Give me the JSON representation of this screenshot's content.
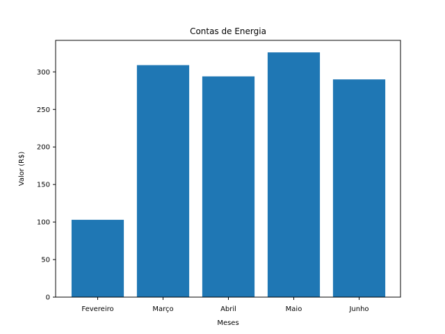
{
  "chart_data": {
    "type": "bar",
    "title": "Contas de Energia",
    "xlabel": "Meses",
    "ylabel": "Valor (R$)",
    "categories": [
      "Fevereiro",
      "Março",
      "Abril",
      "Maio",
      "Junho"
    ],
    "values": [
      103,
      309,
      294,
      326,
      290
    ],
    "ylim": [
      0,
      342
    ],
    "yticks": [
      0,
      50,
      100,
      150,
      200,
      250,
      300
    ],
    "grid": false,
    "bar_color": "#1f77b4"
  }
}
